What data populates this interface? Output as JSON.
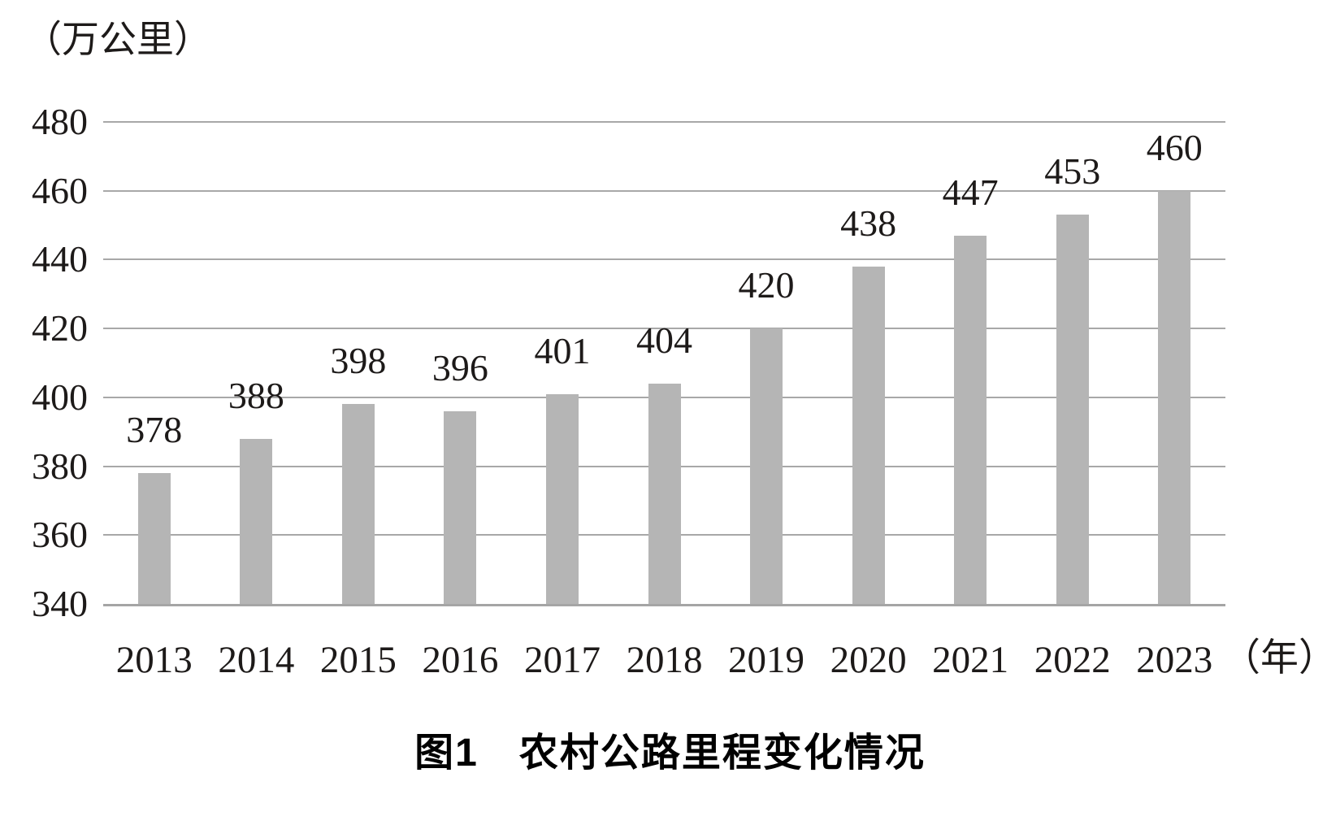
{
  "chart_data": {
    "type": "bar",
    "title": "图1　农村公路里程变化情况",
    "y_unit_label": "（万公里）",
    "x_unit_label": "（年）",
    "categories": [
      "2013",
      "2014",
      "2015",
      "2016",
      "2017",
      "2018",
      "2019",
      "2020",
      "2021",
      "2022",
      "2023"
    ],
    "values": [
      378,
      388,
      398,
      396,
      401,
      404,
      420,
      438,
      447,
      453,
      460
    ],
    "xlabel": "（年）",
    "ylabel": "（万公里）",
    "ylim": [
      340,
      480
    ],
    "yticks": [
      480,
      460,
      440,
      420,
      400,
      380,
      360,
      340
    ],
    "grid": true,
    "legend_position": "none",
    "data_labels": true,
    "colors": {
      "bar": "#b5b5b5",
      "gridline": "#a8a8a8",
      "axis_line": "#a5a5a5",
      "text": "#1d1a19"
    }
  }
}
